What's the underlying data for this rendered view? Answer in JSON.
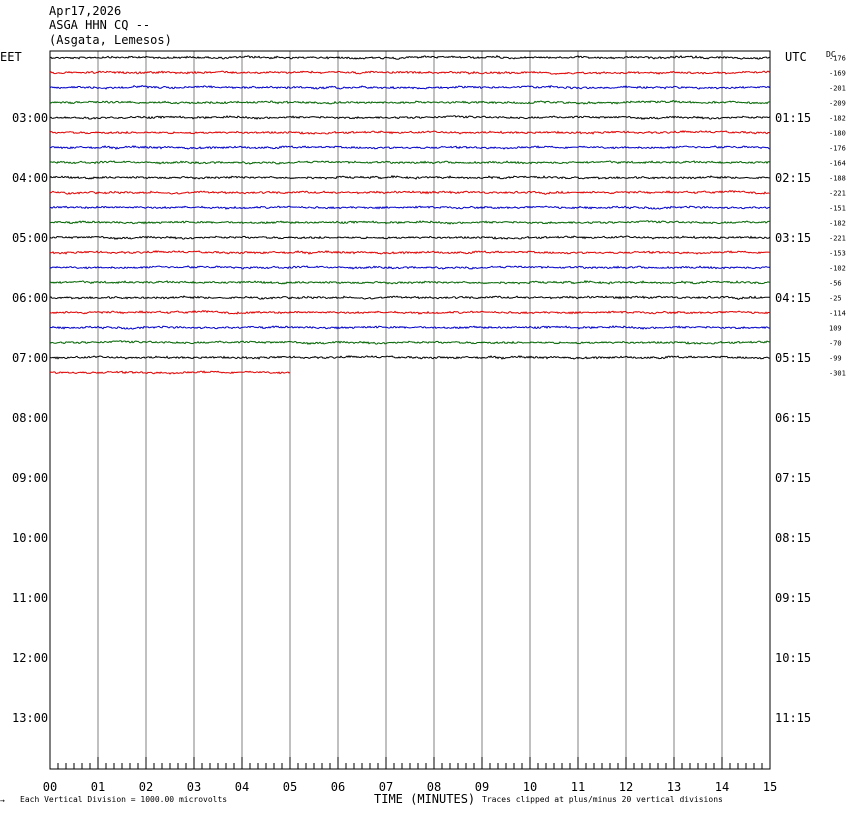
{
  "header": {
    "date": "Apr17,2026",
    "station": "ASGA HHN CQ --",
    "location": "(Asgata, Lemesos)"
  },
  "left_tz": "EET",
  "right_tz": "UTC",
  "dc_label": "DC",
  "footer": {
    "scale_mark": "→",
    "scale_text": "Each Vertical Division = 1000.00 microvolts",
    "xaxis_title": "TIME (MINUTES)",
    "clip_text": "Traces clipped at plus/minus 20 vertical divisions"
  },
  "colors": {
    "trace_cycle": [
      "#000000",
      "#e00000",
      "#0000c8",
      "#006400"
    ],
    "grid": "#808080",
    "frame": "#000000"
  },
  "chart_data": {
    "type": "line",
    "title": "ASGA HHN CQ --",
    "xlabel": "TIME (MINUTES)",
    "xlim": [
      0,
      15
    ],
    "x_ticks": [
      "00",
      "01",
      "02",
      "03",
      "04",
      "05",
      "06",
      "07",
      "08",
      "09",
      "10",
      "11",
      "12",
      "13",
      "14",
      "15"
    ],
    "left_hour_labels": [
      "03:00",
      "04:00",
      "05:00",
      "06:00",
      "07:00",
      "08:00",
      "09:00",
      "10:00",
      "11:00",
      "12:00",
      "13:00"
    ],
    "right_hour_labels": [
      "01:15",
      "02:15",
      "03:15",
      "04:15",
      "05:15",
      "06:15",
      "07:15",
      "08:15",
      "09:15",
      "10:15",
      "11:15"
    ],
    "trace_minutes": 15,
    "traces": [
      {
        "dc": "-176",
        "duration_min": 15
      },
      {
        "dc": "-169",
        "duration_min": 15
      },
      {
        "dc": "-201",
        "duration_min": 15
      },
      {
        "dc": "-209",
        "duration_min": 15
      },
      {
        "dc": "-182",
        "duration_min": 15
      },
      {
        "dc": "-180",
        "duration_min": 15
      },
      {
        "dc": "-176",
        "duration_min": 15
      },
      {
        "dc": "-164",
        "duration_min": 15
      },
      {
        "dc": "-188",
        "duration_min": 15
      },
      {
        "dc": "-221",
        "duration_min": 15
      },
      {
        "dc": "-151",
        "duration_min": 15
      },
      {
        "dc": "-182",
        "duration_min": 15
      },
      {
        "dc": "-221",
        "duration_min": 15
      },
      {
        "dc": "-153",
        "duration_min": 15
      },
      {
        "dc": "-102",
        "duration_min": 15
      },
      {
        "dc": "-56",
        "duration_min": 15
      },
      {
        "dc": "-25",
        "duration_min": 15
      },
      {
        "dc": "-114",
        "duration_min": 15
      },
      {
        "dc": "109",
        "duration_min": 15
      },
      {
        "dc": "-70",
        "duration_min": 15
      },
      {
        "dc": "-99",
        "duration_min": 15
      },
      {
        "dc": "-301",
        "duration_min": 5
      }
    ],
    "grid": true,
    "y_scale": "Each Vertical Division = 1000.00 microvolts"
  }
}
